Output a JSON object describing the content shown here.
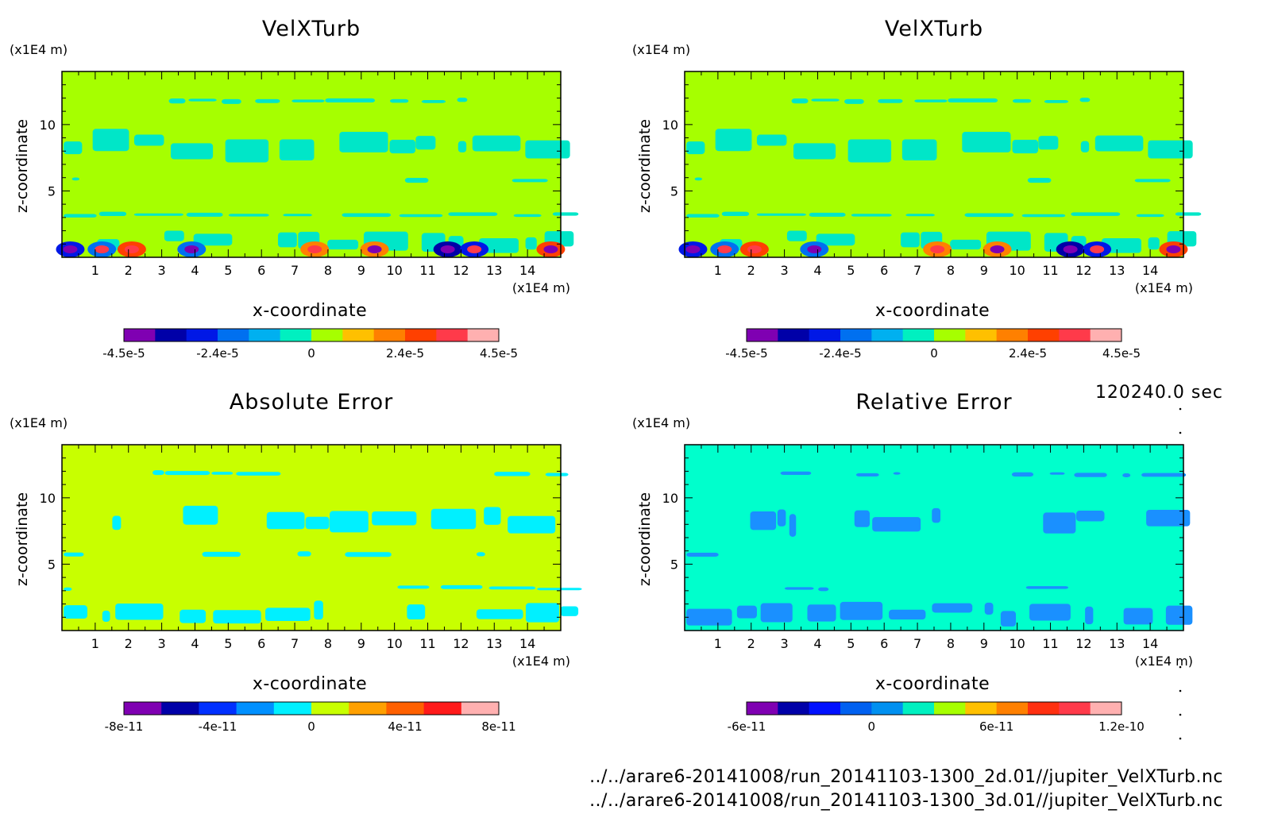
{
  "chart_data": [
    {
      "type": "heatmap",
      "title": "VelXTurb",
      "xlabel": "x-coordinate",
      "ylabel": "z-coordinate",
      "x_unit": "(x1E4 m)",
      "y_unit": "(x1E4 m)",
      "xlim": [
        0,
        15
      ],
      "ylim": [
        0,
        14
      ],
      "x_ticks": [
        "1",
        "2",
        "3",
        "4",
        "5",
        "6",
        "7",
        "8",
        "9",
        "10",
        "11",
        "12",
        "13",
        "14"
      ],
      "y_ticks": [
        "5",
        "10"
      ],
      "background_color": "#a6ff00",
      "band_color": "#00e6c8",
      "colorbar": {
        "colors": [
          "#7f00b2",
          "#0000a8",
          "#0018e6",
          "#0070f0",
          "#00b0f0",
          "#00f0c0",
          "#a6ff00",
          "#ffc000",
          "#ff8000",
          "#ff4000",
          "#ff3a4a",
          "#ffb0b0"
        ],
        "tick_labels": [
          "-4.5e-5",
          "-2.4e-5",
          "0",
          "2.4e-5",
          "4.5e-5"
        ]
      }
    },
    {
      "type": "heatmap",
      "title": "VelXTurb",
      "xlabel": "x-coordinate",
      "ylabel": "z-coordinate",
      "x_unit": "(x1E4 m)",
      "y_unit": "(x1E4 m)",
      "xlim": [
        0,
        15
      ],
      "ylim": [
        0,
        14
      ],
      "x_ticks": [
        "1",
        "2",
        "3",
        "4",
        "5",
        "6",
        "7",
        "8",
        "9",
        "10",
        "11",
        "12",
        "13",
        "14"
      ],
      "y_ticks": [
        "5",
        "10"
      ],
      "background_color": "#a6ff00",
      "band_color": "#00e6c8",
      "colorbar": {
        "colors": [
          "#7f00b2",
          "#0000a8",
          "#0018e6",
          "#0070f0",
          "#00b0f0",
          "#00f0c0",
          "#a6ff00",
          "#ffc000",
          "#ff8000",
          "#ff4000",
          "#ff3a4a",
          "#ffb0b0"
        ],
        "tick_labels": [
          "-4.5e-5",
          "-2.4e-5",
          "0",
          "2.4e-5",
          "4.5e-5"
        ]
      }
    },
    {
      "type": "heatmap",
      "title": "Absolute Error",
      "xlabel": "x-coordinate",
      "ylabel": "z-coordinate",
      "x_unit": "(x1E4 m)",
      "y_unit": "(x1E4 m)",
      "xlim": [
        0,
        15
      ],
      "ylim": [
        0,
        14
      ],
      "x_ticks": [
        "1",
        "2",
        "3",
        "4",
        "5",
        "6",
        "7",
        "8",
        "9",
        "10",
        "11",
        "12",
        "13",
        "14"
      ],
      "y_ticks": [
        "5",
        "10"
      ],
      "background_color": "#c8ff00",
      "band_color": "#00f0ff",
      "colorbar": {
        "colors": [
          "#7f00b2",
          "#0000a8",
          "#0030ff",
          "#0090ff",
          "#00f0ff",
          "#c8ff00",
          "#ffa000",
          "#ff6000",
          "#ff1a1a",
          "#ffb0b0"
        ],
        "tick_labels": [
          "-8e-11",
          "-4e-11",
          "0",
          "4e-11",
          "8e-11"
        ]
      }
    },
    {
      "type": "heatmap",
      "title": "Relative Error",
      "xlabel": "x-coordinate",
      "ylabel": "z-coordinate",
      "x_unit": "(x1E4 m)",
      "y_unit": "(x1E4 m)",
      "xlim": [
        0,
        15
      ],
      "ylim": [
        0,
        14
      ],
      "x_ticks": [
        "1",
        "2",
        "3",
        "4",
        "5",
        "6",
        "7",
        "8",
        "9",
        "10",
        "11",
        "12",
        "13",
        "14"
      ],
      "y_ticks": [
        "5",
        "10"
      ],
      "background_color": "#00ffcc",
      "band_color": "#1a90ff",
      "colorbar": {
        "colors": [
          "#7f00b2",
          "#0000a8",
          "#0010ff",
          "#0060f0",
          "#0090f0",
          "#00f0c0",
          "#a6ff00",
          "#ffc000",
          "#ff8000",
          "#ff3010",
          "#ff3a4a",
          "#ffb0b0"
        ],
        "tick_labels": [
          "-6e-11",
          "0",
          "6e-11",
          "1.2e-10"
        ]
      }
    }
  ],
  "time_label": "120240.0 sec",
  "footer": {
    "line1": "../../arare6-20141008/run_20141103-1300_2d.01//jupiter_VelXTurb.nc",
    "line2": "../../arare6-20141008/run_20141103-1300_3d.01//jupiter_VelXTurb.nc"
  }
}
